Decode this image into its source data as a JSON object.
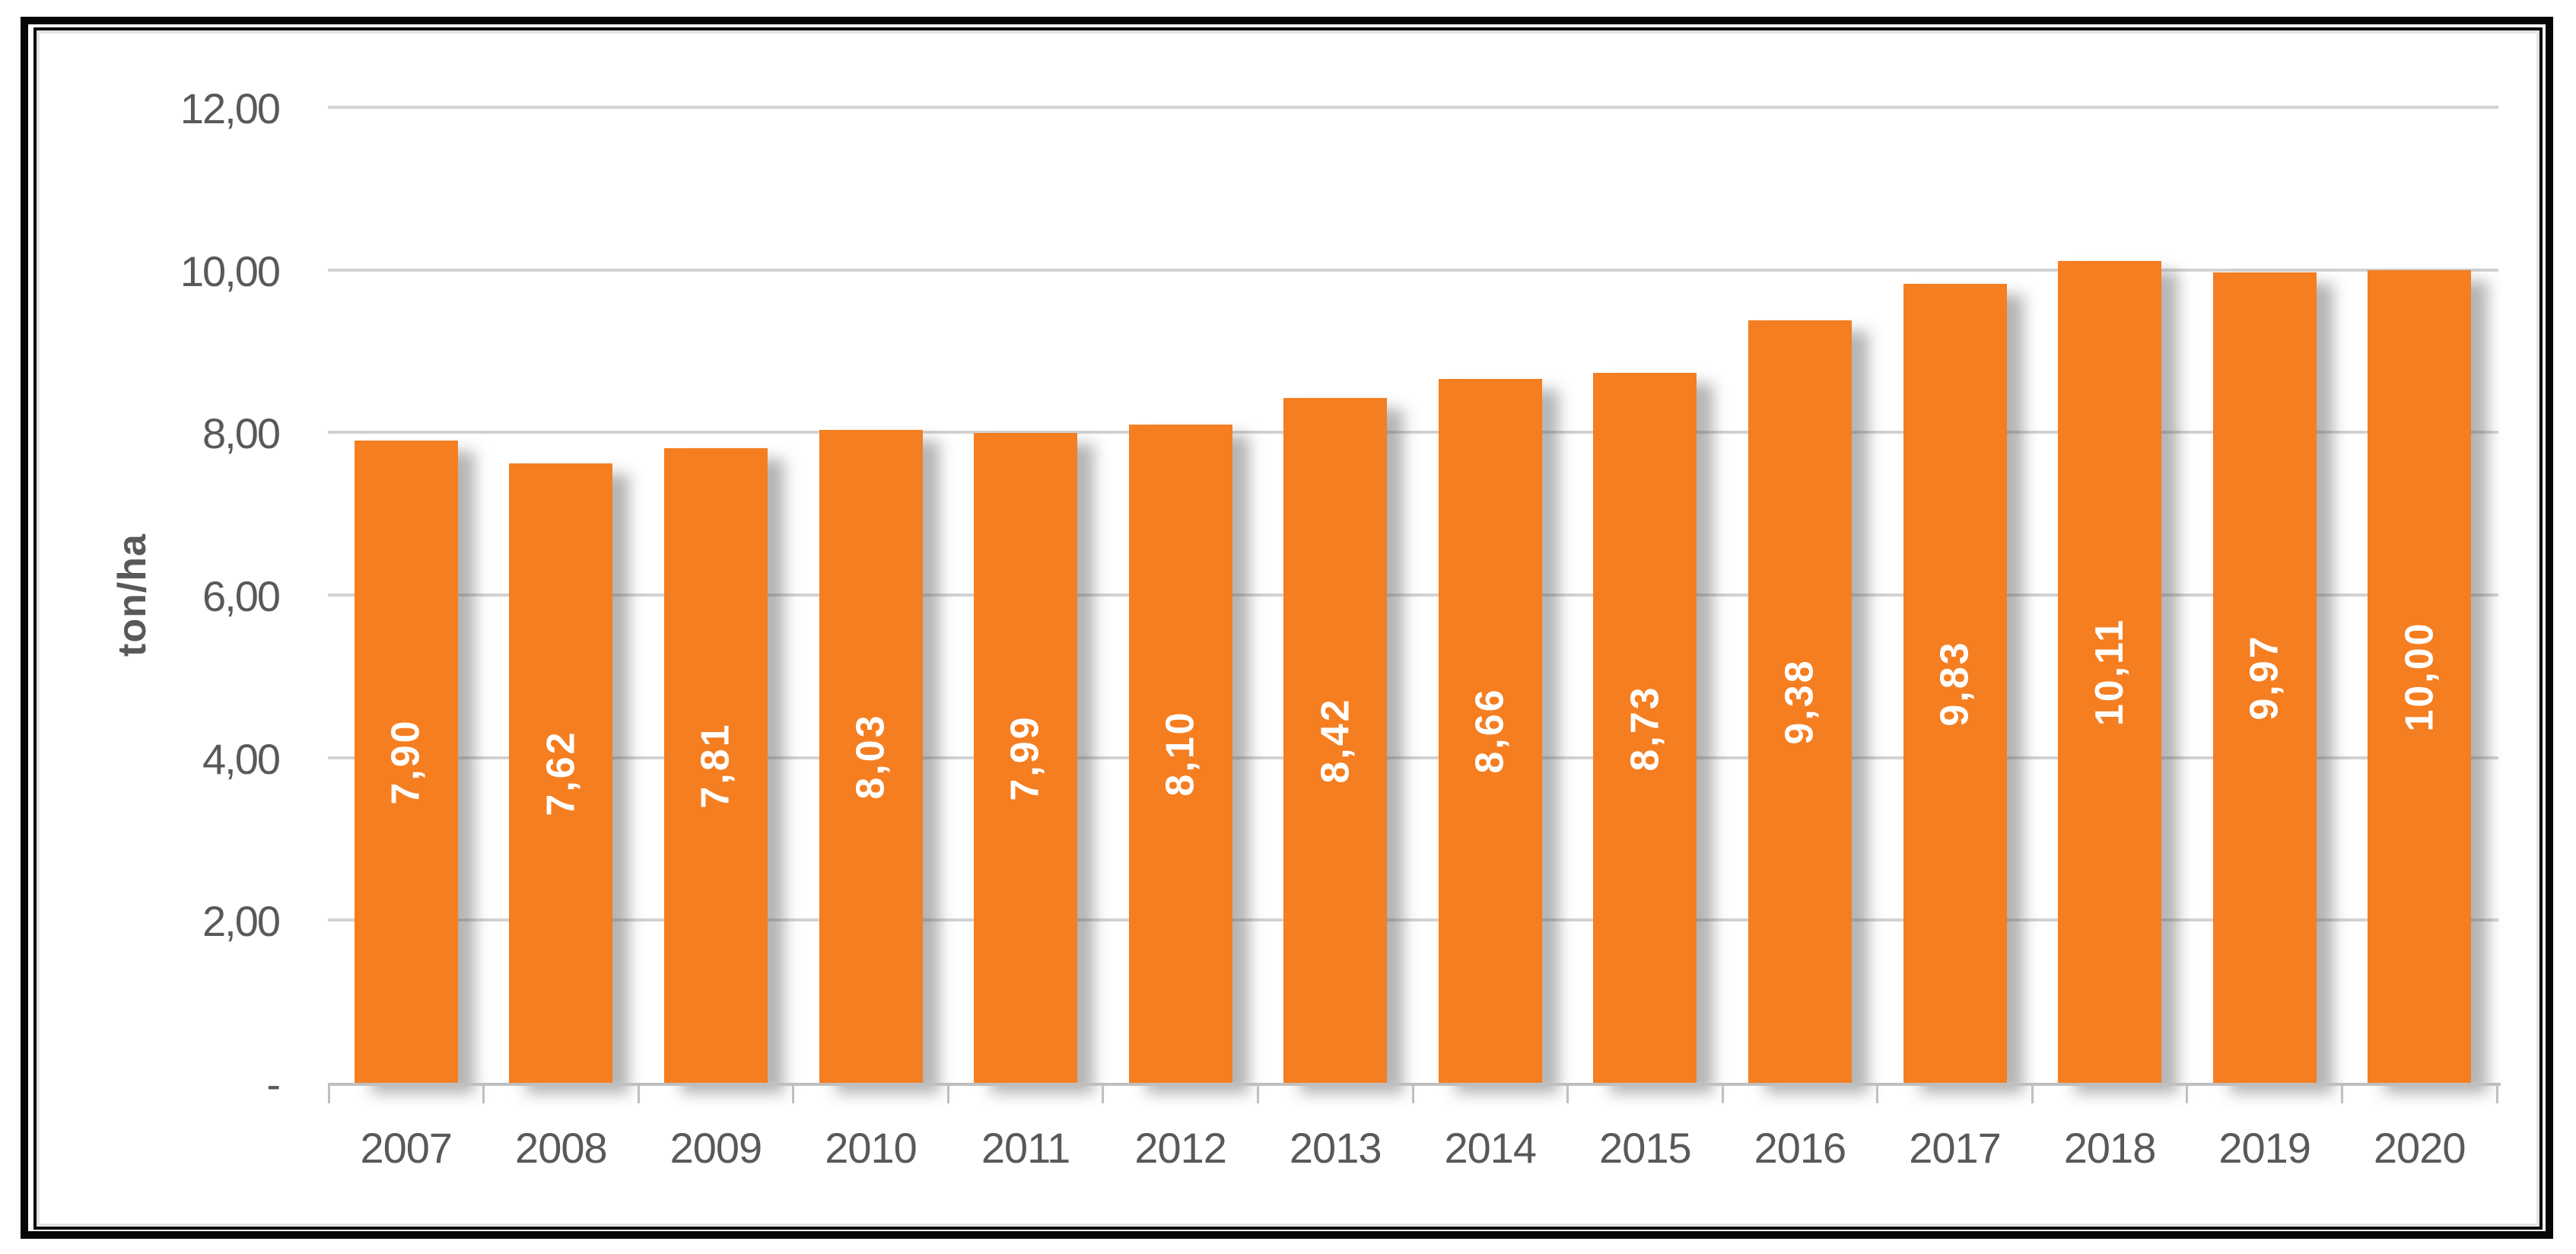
{
  "chart_data": {
    "type": "bar",
    "title": "",
    "xlabel": "",
    "ylabel": "ton/ha",
    "categories": [
      "2007",
      "2008",
      "2009",
      "2010",
      "2011",
      "2012",
      "2013",
      "2014",
      "2015",
      "2016",
      "2017",
      "2018",
      "2019",
      "2020"
    ],
    "values": [
      7.9,
      7.62,
      7.81,
      8.03,
      7.99,
      8.1,
      8.42,
      8.66,
      8.73,
      9.38,
      9.83,
      10.11,
      9.97,
      10.0
    ],
    "value_labels": [
      "7,90",
      "7,62",
      "7,81",
      "8,03",
      "7,99",
      "8,10",
      "8,42",
      "8,66",
      "8,73",
      "9,38",
      "9,83",
      "10,11",
      "9,97",
      "10,00"
    ],
    "y_ticks": [
      {
        "label": "12,00",
        "value": 12
      },
      {
        "label": "10,00",
        "value": 10
      },
      {
        "label": "8,00",
        "value": 8
      },
      {
        "label": "6,00",
        "value": 6
      },
      {
        "label": "4,00",
        "value": 4
      },
      {
        "label": "2,00",
        "value": 2
      },
      {
        "label": "-",
        "value": 0
      }
    ],
    "ylim": [
      0,
      12
    ],
    "grid": true,
    "legend": "none",
    "colors": {
      "bar": "#F57E21",
      "bar_value_label": "#FFFFFF",
      "axis_text": "#595959",
      "gridline": "#D2D2D2",
      "axis_line": "#BFBFBF",
      "bar_shadow": "rgba(90,90,90,0.45)"
    }
  }
}
